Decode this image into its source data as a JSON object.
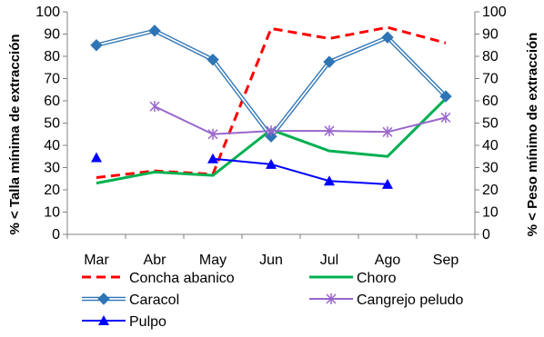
{
  "chart_data": {
    "type": "line",
    "categories": [
      "Mar",
      "Abr",
      "May",
      "Jun",
      "Jul",
      "Ago",
      "Sep"
    ],
    "ylabel_left": "% < Talla mínima de extracción",
    "ylabel_right": "% < Peso mínimo de extracción",
    "ylim": [
      0,
      100
    ],
    "ytick_step": 10,
    "yticks": [
      "0",
      "10",
      "20",
      "30",
      "40",
      "50",
      "60",
      "70",
      "80",
      "90",
      "100"
    ],
    "grid": false,
    "legend_position": "bottom",
    "series": [
      {
        "name": "Concha abanico",
        "axis": "right",
        "color": "#FF0000",
        "style": "dashed",
        "marker": "none",
        "values": [
          25.5,
          28.5,
          27,
          92.5,
          88,
          93,
          86
        ]
      },
      {
        "name": "Choro",
        "axis": "right",
        "color": "#00B050",
        "style": "solid",
        "marker": "none",
        "values": [
          23,
          28,
          26.5,
          47,
          37.5,
          35,
          61
        ]
      },
      {
        "name": "Caracol",
        "axis": "left",
        "color": "#2E75B6",
        "style": "double",
        "marker": "diamond",
        "values": [
          85,
          91.5,
          78.5,
          44,
          77.5,
          88.5,
          62
        ]
      },
      {
        "name": "Cangrejo peludo",
        "axis": "left",
        "color": "#9966CC",
        "style": "solid",
        "marker": "asterisk",
        "values": [
          null,
          57.5,
          45,
          46.5,
          46.5,
          46,
          52.5
        ]
      },
      {
        "name": "Pulpo",
        "axis": "left",
        "color": "#0000FF",
        "style": "solid",
        "marker": "triangle",
        "values": [
          34.5,
          null,
          34,
          31.5,
          24,
          22.5,
          null
        ]
      }
    ]
  }
}
